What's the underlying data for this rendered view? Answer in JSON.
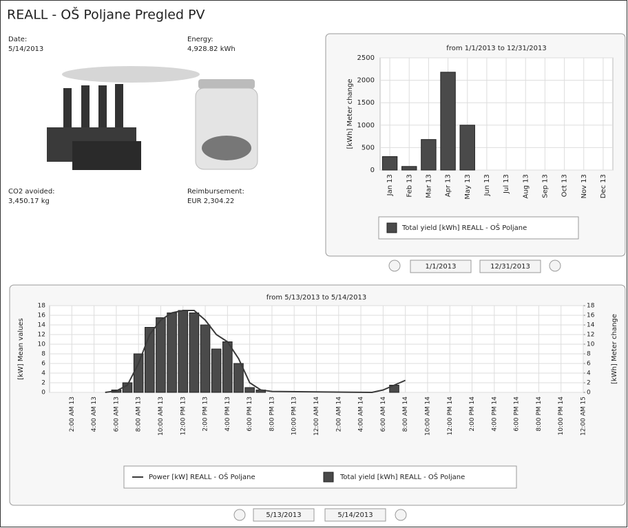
{
  "header": {
    "title": "REALL - OŠ Poljane Pregled PV"
  },
  "summary": [
    {
      "label": "Date:",
      "value": "5/14/2013"
    },
    {
      "label": "Energy:",
      "value": "4,928.82 kWh"
    },
    {
      "label": "CO2 avoided:",
      "value": "3,450.17 kg"
    },
    {
      "label": "Reimbursement:",
      "value": "EUR 2,304.22"
    }
  ],
  "range_controls": {
    "year": {
      "from": "1/1/2013",
      "to": "12/31/2013"
    },
    "day": {
      "from": "5/13/2013",
      "to": "5/14/2013"
    }
  },
  "chart_data": [
    {
      "type": "bar",
      "title": "from 1/1/2013 to 12/31/2013",
      "y_label": "[kWh] Meter change",
      "categories": [
        "Jan 13",
        "Feb 13",
        "Mar 13",
        "Apr 13",
        "May 13",
        "Jun 13",
        "Jul 13",
        "Aug 13",
        "Sep 13",
        "Oct 13",
        "Nov 13",
        "Dec 13"
      ],
      "series": [
        {
          "name": "Total yield [kWh] REALL - OŠ Poljane",
          "color": "#4a4a4a",
          "values": [
            300,
            80,
            680,
            2180,
            1000,
            null,
            null,
            null,
            null,
            null,
            null,
            null
          ]
        }
      ],
      "ylim": [
        0,
        2500
      ],
      "yticks": [
        0,
        500,
        1000,
        1500,
        2000,
        2500
      ],
      "grid": true,
      "legend": "bottom"
    },
    {
      "type": "bar-line",
      "title": "from 5/13/2013 to 5/14/2013",
      "y_label": "[kW] Mean values",
      "y2_label": "[kWh] Meter change",
      "x": [
        5,
        6,
        7,
        8,
        9,
        10,
        11,
        12,
        13,
        14,
        15,
        16,
        17,
        18,
        19,
        20,
        29,
        30,
        31,
        32
      ],
      "series": [
        {
          "name": "Power [kW] REALL - OŠ Poljane",
          "color": "#3a3a3a",
          "kind": "line",
          "values": [
            0,
            0.3,
            1.5,
            6,
            12,
            15,
            16.5,
            17,
            17,
            15,
            12,
            10.5,
            7,
            2,
            0.5,
            0.2,
            0,
            0.5,
            1.5,
            2.5
          ]
        },
        {
          "name": "Total yield [kWh] REALL - OŠ Poljane",
          "color": "#4a4a4a",
          "kind": "bar",
          "axis": "y2",
          "values": [
            null,
            0.5,
            2,
            8,
            13.5,
            15.5,
            16.5,
            17,
            16.5,
            14,
            9,
            10.5,
            6,
            1,
            0.5,
            null,
            null,
            null,
            1.5,
            null
          ]
        }
      ],
      "xlim": [
        0,
        48
      ],
      "xticks": [
        {
          "value": 2,
          "label": "2:00 AM 13"
        },
        {
          "value": 4,
          "label": "4:00 AM 13"
        },
        {
          "value": 6,
          "label": "6:00 AM 13"
        },
        {
          "value": 8,
          "label": "8:00 AM 13"
        },
        {
          "value": 10,
          "label": "10:00 AM 13"
        },
        {
          "value": 12,
          "label": "12:00 PM 13"
        },
        {
          "value": 14,
          "label": "2:00 PM 13"
        },
        {
          "value": 16,
          "label": "4:00 PM 13"
        },
        {
          "value": 18,
          "label": "6:00 PM 13"
        },
        {
          "value": 20,
          "label": "8:00 PM 13"
        },
        {
          "value": 22,
          "label": "10:00 PM 13"
        },
        {
          "value": 24,
          "label": "12:00 AM 14"
        },
        {
          "value": 26,
          "label": "2:00 AM 14"
        },
        {
          "value": 28,
          "label": "4:00 AM 14"
        },
        {
          "value": 30,
          "label": "6:00 AM 14"
        },
        {
          "value": 32,
          "label": "8:00 AM 14"
        },
        {
          "value": 34,
          "label": "10:00 AM 14"
        },
        {
          "value": 36,
          "label": "12:00 PM 14"
        },
        {
          "value": 38,
          "label": "2:00 PM 14"
        },
        {
          "value": 40,
          "label": "4:00 PM 14"
        },
        {
          "value": 42,
          "label": "6:00 PM 14"
        },
        {
          "value": 44,
          "label": "8:00 PM 14"
        },
        {
          "value": 46,
          "label": "10:00 PM 14"
        },
        {
          "value": 48,
          "label": "12:00 AM 15"
        }
      ],
      "ylim": [
        0,
        18
      ],
      "yticks": [
        0,
        2,
        4,
        6,
        8,
        10,
        12,
        14,
        16,
        18
      ],
      "y2lim": [
        0,
        18
      ],
      "y2ticks": [
        0,
        2,
        4,
        6,
        8,
        10,
        12,
        14,
        16,
        18
      ],
      "grid": true,
      "legend": "bottom"
    }
  ]
}
